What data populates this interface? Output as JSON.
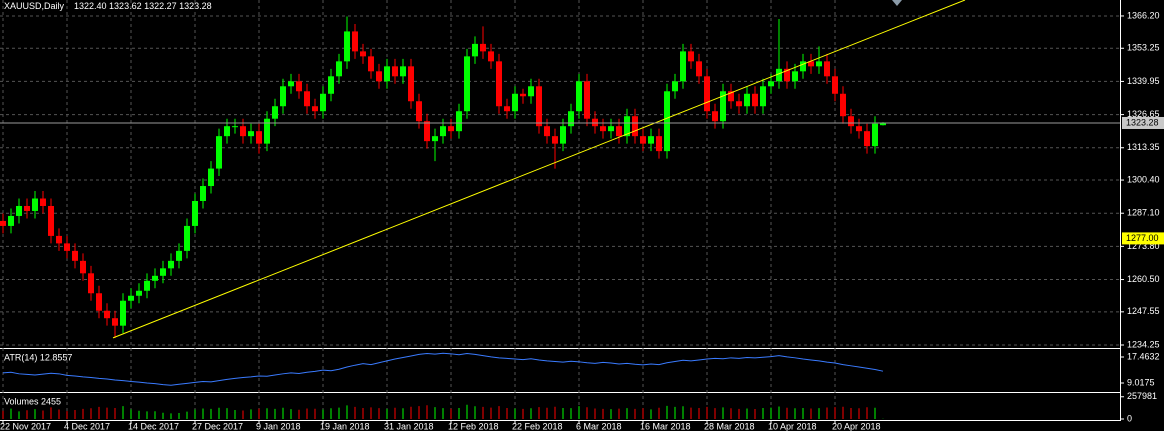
{
  "chart_data": {
    "type": "candlestick",
    "title": "XAUUSD,Daily",
    "ohlc_text": "1322.40 1323.62 1322.27 1323.28",
    "categories": [
      "22 Nov 2017",
      null,
      null,
      null,
      null,
      null,
      null,
      null,
      "4 Dec 2017",
      null,
      null,
      null,
      null,
      null,
      null,
      null,
      "14 Dec 2017",
      null,
      null,
      null,
      null,
      null,
      null,
      null,
      "27 Dec 2017",
      null,
      null,
      null,
      null,
      null,
      null,
      null,
      "9 Jan 2018",
      null,
      null,
      null,
      null,
      null,
      null,
      null,
      "19 Jan 2018",
      null,
      null,
      null,
      null,
      null,
      null,
      null,
      "31 Jan 2018",
      null,
      null,
      null,
      null,
      null,
      null,
      null,
      "12 Feb 2018",
      null,
      null,
      null,
      null,
      null,
      null,
      null,
      "22 Feb 2018",
      null,
      null,
      null,
      null,
      null,
      null,
      null,
      "6 Mar 2018",
      null,
      null,
      null,
      null,
      null,
      null,
      null,
      "16 Mar 2018",
      null,
      null,
      null,
      null,
      null,
      null,
      null,
      "28 Mar 2018",
      null,
      null,
      null,
      null,
      null,
      null,
      null,
      "10 Apr 2018",
      null,
      null,
      null,
      null,
      null,
      null,
      null,
      "20 Apr 2018",
      null,
      null,
      null,
      null,
      null,
      null
    ],
    "open": [
      1284,
      1282,
      1286,
      1290,
      1288,
      1293,
      1290,
      1278,
      1275,
      1272,
      1268,
      1263,
      1255,
      1248,
      1245,
      1242,
      1252,
      1254,
      1256,
      1260,
      1262,
      1265,
      1268,
      1272,
      1282,
      1292,
      1298,
      1305,
      1318,
      1322,
      1322,
      1318,
      1320,
      1315,
      1325,
      1330,
      1338,
      1340,
      1336,
      1330,
      1328,
      1335,
      1342,
      1348,
      1360,
      1352,
      1350,
      1344,
      1340,
      1346,
      1342,
      1346,
      1332,
      1324,
      1316,
      1318,
      1322,
      1320,
      1328,
      1350,
      1355,
      1352,
      1348,
      1330,
      1328,
      1335,
      1334,
      1338,
      1322,
      1318,
      1315,
      1322,
      1328,
      1340,
      1325,
      1322,
      1320,
      1322,
      1318,
      1326,
      1318,
      1315,
      1318,
      1312,
      1336,
      1340,
      1352,
      1348,
      1342,
      1328,
      1324,
      1336,
      1332,
      1330,
      1335,
      1330,
      1338,
      1340,
      1345,
      1340,
      1344,
      1348,
      1346,
      1348,
      1342,
      1335,
      1326,
      1322,
      1320,
      1314,
      1322.4
    ],
    "high": [
      1287,
      1289,
      1293,
      1293,
      1296,
      1296,
      1293,
      1281,
      1278,
      1275,
      1271,
      1266,
      1258,
      1251,
      1248,
      1255,
      1257,
      1259,
      1263,
      1265,
      1268,
      1271,
      1275,
      1285,
      1295,
      1301,
      1308,
      1321,
      1325,
      1325,
      1325,
      1323,
      1323,
      1328,
      1333,
      1341,
      1343,
      1343,
      1339,
      1333,
      1338,
      1345,
      1351,
      1366,
      1363,
      1355,
      1353,
      1347,
      1349,
      1349,
      1349,
      1349,
      1335,
      1327,
      1321,
      1325,
      1325,
      1331,
      1353,
      1358,
      1362,
      1355,
      1351,
      1333,
      1338,
      1337,
      1341,
      1341,
      1325,
      1321,
      1325,
      1331,
      1343,
      1343,
      1328,
      1325,
      1325,
      1325,
      1329,
      1329,
      1321,
      1321,
      1321,
      1339,
      1343,
      1355,
      1355,
      1351,
      1345,
      1331,
      1339,
      1339,
      1335,
      1338,
      1338,
      1341,
      1343,
      1365,
      1348,
      1347,
      1351,
      1351,
      1354,
      1351,
      1345,
      1338,
      1329,
      1325,
      1323,
      1326,
      1323.62
    ],
    "low": [
      1279,
      1279,
      1283,
      1285,
      1285,
      1287,
      1275,
      1272,
      1269,
      1265,
      1260,
      1252,
      1245,
      1242,
      1237,
      1239,
      1249,
      1251,
      1253,
      1257,
      1259,
      1262,
      1265,
      1269,
      1279,
      1289,
      1295,
      1302,
      1315,
      1319,
      1315,
      1315,
      1311,
      1312,
      1322,
      1327,
      1335,
      1333,
      1327,
      1325,
      1325,
      1332,
      1339,
      1345,
      1349,
      1347,
      1341,
      1337,
      1337,
      1339,
      1339,
      1329,
      1321,
      1313,
      1308,
      1315,
      1317,
      1317,
      1325,
      1347,
      1349,
      1345,
      1327,
      1325,
      1325,
      1331,
      1331,
      1319,
      1315,
      1305,
      1312,
      1319,
      1325,
      1322,
      1319,
      1317,
      1317,
      1315,
      1315,
      1315,
      1312,
      1312,
      1309,
      1309,
      1333,
      1337,
      1345,
      1339,
      1325,
      1321,
      1321,
      1329,
      1327,
      1327,
      1327,
      1327,
      1335,
      1337,
      1337,
      1337,
      1341,
      1343,
      1343,
      1339,
      1332,
      1323,
      1319,
      1317,
      1311,
      1311,
      1322.27
    ],
    "close": [
      1282,
      1286,
      1290,
      1288,
      1293,
      1290,
      1278,
      1275,
      1272,
      1268,
      1263,
      1255,
      1248,
      1245,
      1242,
      1252,
      1254,
      1256,
      1260,
      1262,
      1265,
      1268,
      1272,
      1282,
      1292,
      1298,
      1305,
      1318,
      1322,
      1322,
      1318,
      1320,
      1315,
      1325,
      1330,
      1338,
      1340,
      1336,
      1330,
      1328,
      1335,
      1342,
      1348,
      1360,
      1352,
      1350,
      1344,
      1340,
      1346,
      1342,
      1346,
      1332,
      1324,
      1316,
      1318,
      1322,
      1320,
      1328,
      1350,
      1355,
      1352,
      1348,
      1330,
      1328,
      1335,
      1334,
      1338,
      1322,
      1318,
      1315,
      1322,
      1328,
      1340,
      1325,
      1322,
      1320,
      1322,
      1318,
      1326,
      1318,
      1315,
      1318,
      1312,
      1336,
      1340,
      1352,
      1348,
      1342,
      1328,
      1324,
      1336,
      1332,
      1330,
      1335,
      1330,
      1338,
      1340,
      1345,
      1340,
      1344,
      1348,
      1346,
      1348,
      1342,
      1335,
      1326,
      1322,
      1320,
      1314,
      1323,
      1323.28
    ],
    "up_color": "#00ff00",
    "down_color": "#ff0000",
    "ylim": [
      1233.05,
      1372.6
    ],
    "yticks": [
      {
        "value": 1366.2,
        "label": "1366.20"
      },
      1353.25,
      1339.95,
      1326.65,
      1313.35,
      {
        "value": 1300.4,
        "label": "1300.40"
      },
      {
        "value": 1287.1,
        "label": "1287.10"
      },
      {
        "value": 1273.8,
        "label": "1273.80"
      },
      {
        "value": 1260.5,
        "label": "1260.50"
      },
      1247.55,
      1234.25
    ],
    "grid": true,
    "bid_line": {
      "value": 1323.28,
      "label": "1323.28"
    },
    "level": {
      "value": 1277,
      "label": "1277.00"
    },
    "trendline": {
      "x": [
        13.75,
        120.25
      ],
      "y": [
        1237.1,
        1372.6
      ],
      "color": "#ffff00"
    },
    "indicators": [
      {
        "type": "line",
        "name": "ATR(14) 12.8557",
        "color": "#3a7bff",
        "values": [
          12.3,
          12.5,
          12.0,
          11.8,
          11.6,
          11.9,
          12.2,
          12.0,
          11.5,
          11.3,
          11.0,
          10.8,
          10.5,
          10.3,
          10.0,
          9.8,
          9.5,
          9.3,
          9.0,
          8.8,
          8.5,
          8.3,
          8.6,
          8.9,
          9.2,
          9.5,
          9.4,
          9.8,
          10.2,
          10.5,
          10.8,
          11.0,
          11.3,
          11.2,
          11.6,
          12.0,
          12.3,
          12.1,
          12.5,
          12.8,
          13.2,
          13.0,
          13.5,
          14.2,
          14.8,
          15.3,
          15.0,
          15.6,
          16.2,
          16.8,
          17.3,
          17.8,
          18.3,
          18.6,
          18.4,
          18.7,
          18.5,
          18.2,
          18.6,
          18.3,
          17.9,
          17.5,
          17.2,
          17.0,
          16.8,
          16.6,
          16.9,
          16.5,
          16.2,
          16.0,
          15.8,
          16.1,
          15.9,
          15.6,
          15.4,
          15.7,
          15.5,
          15.2,
          15.4,
          15.1,
          14.9,
          15.2,
          15.0,
          15.6,
          16.0,
          16.4,
          16.2,
          16.5,
          16.8,
          17.0,
          16.9,
          17.2,
          17.0,
          17.3,
          17.2,
          17.4,
          17.6,
          17.9,
          17.5,
          17.2,
          16.8,
          16.5,
          16.2,
          15.8,
          15.5,
          15.0,
          14.6,
          14.2,
          13.8,
          13.4,
          12.8557
        ],
        "ylim": [
          6.09,
          19.74
        ],
        "yticks": [
          17.4632,
          9.0175
        ]
      },
      {
        "type": "bar",
        "name": "Volumes 2455",
        "values": [
          95000,
          120000,
          88000,
          102000,
          115000,
          98000,
          135000,
          110000,
          92000,
          105000,
          118000,
          125000,
          140000,
          132000,
          128000,
          150000,
          112000,
          96000,
          88000,
          90000,
          72000,
          65000,
          70000,
          85000,
          110000,
          122000,
          118000,
          130000,
          126000,
          104000,
          98000,
          112000,
          120000,
          125000,
          118000,
          130000,
          115000,
          108000,
          122000,
          119000,
          110000,
          124000,
          132000,
          158000,
          140000,
          128000,
          135000,
          126000,
          118000,
          131000,
          124000,
          142000,
          150000,
          160000,
          138000,
          126000,
          120000,
          128000,
          165000,
          148000,
          140000,
          132000,
          150000,
          128000,
          122000,
          118000,
          125000,
          138000,
          130000,
          142000,
          128000,
          126000,
          150000,
          136000,
          122000,
          118000,
          115000,
          120000,
          126000,
          118000,
          124000,
          112000,
          130000,
          152000,
          140000,
          148000,
          132000,
          128000,
          140000,
          126000,
          135000,
          124000,
          118000,
          122000,
          116000,
          128000,
          132000,
          145000,
          130000,
          124000,
          128000,
          122000,
          126000,
          134000,
          138000,
          142000,
          128000,
          124000,
          136000,
          130000,
          2455
        ],
        "ylim": [
          0,
          290000
        ],
        "yticks": [
          257981,
          0
        ]
      }
    ]
  }
}
